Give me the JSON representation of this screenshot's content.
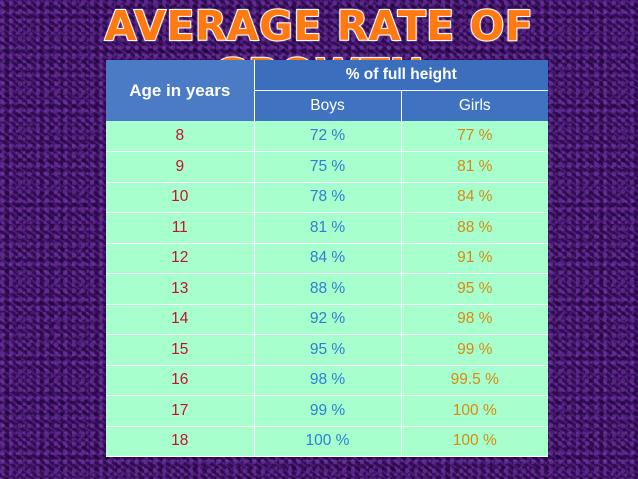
{
  "title": "AVERAGE RATE OF GROWTH",
  "table": {
    "age_header": "Age in years",
    "group_header": "% of  full height",
    "boys_header": "Boys",
    "girls_header": "Girls",
    "rows": [
      {
        "age": "8",
        "boys": "72 %",
        "girls": "77 %"
      },
      {
        "age": "9",
        "boys": "75 %",
        "girls": "81 %"
      },
      {
        "age": "10",
        "boys": "78 %",
        "girls": "84 %"
      },
      {
        "age": "11",
        "boys": "81 %",
        "girls": "88 %"
      },
      {
        "age": "12",
        "boys": "84 %",
        "girls": "91 %"
      },
      {
        "age": "13",
        "boys": "88 %",
        "girls": "95 %"
      },
      {
        "age": "14",
        "boys": "92 %",
        "girls": "98 %"
      },
      {
        "age": "15",
        "boys": "95 %",
        "girls": "99 %"
      },
      {
        "age": "16",
        "boys": "98 %",
        "girls": "99.5 %"
      },
      {
        "age": "17",
        "boys": "99 %",
        "girls": "100 %"
      },
      {
        "age": "18",
        "boys": "100 %",
        "girls": "100 %"
      }
    ]
  },
  "colors": {
    "title": "#ff7a10",
    "header": "#3b6fbd",
    "row_bg": "#a6ffcc",
    "age_text": "#c8102e",
    "boys_text": "#2e7fd0",
    "girls_text": "#d88a10"
  }
}
